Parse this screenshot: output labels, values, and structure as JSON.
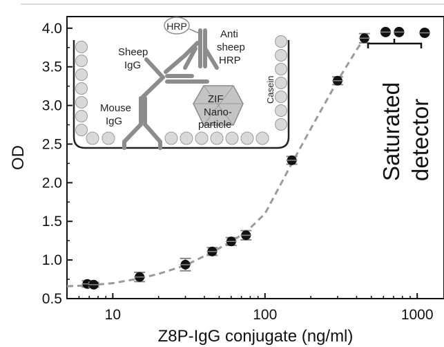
{
  "chart_data": {
    "type": "scatter",
    "title": "",
    "xlabel": "Z8P-IgG conjugate (ng/ml)",
    "ylabel": "OD",
    "x_scale": "log",
    "xlim": [
      5,
      1500
    ],
    "ylim": [
      0.5,
      4.15
    ],
    "x_ticks": [
      10,
      100,
      1000
    ],
    "x_tick_labels": [
      "10",
      "100",
      "1000"
    ],
    "y_ticks": [
      0.5,
      1.0,
      1.5,
      2.0,
      2.5,
      3.0,
      3.5,
      4.0
    ],
    "y_tick_labels": [
      "0.5",
      "1.0",
      "1.5",
      "2.0",
      "2.5",
      "3.0",
      "3.5",
      "4.0"
    ],
    "grid": false,
    "marker_color": "#111111",
    "fit_color": "#9a9a9a",
    "points": [
      {
        "x": 6.8,
        "y": 0.69,
        "err": 0.04
      },
      {
        "x": 7.5,
        "y": 0.68,
        "err": 0.03
      },
      {
        "x": 15,
        "y": 0.78,
        "err": 0.06
      },
      {
        "x": 30,
        "y": 0.94,
        "err": 0.08
      },
      {
        "x": 45,
        "y": 1.11,
        "err": 0.05
      },
      {
        "x": 60,
        "y": 1.24,
        "err": 0.05
      },
      {
        "x": 75,
        "y": 1.32,
        "err": 0.06
      },
      {
        "x": 150,
        "y": 2.29,
        "err": 0.05
      },
      {
        "x": 300,
        "y": 3.32,
        "err": 0.05
      },
      {
        "x": 450,
        "y": 3.87,
        "err": 0.06
      }
    ],
    "saturated_points": [
      {
        "x": 620,
        "y": 3.95
      },
      {
        "x": 760,
        "y": 3.95
      },
      {
        "x": 1120,
        "y": 3.94
      }
    ],
    "fit_curve": {
      "style": "dashed",
      "x": [
        5,
        6.8,
        10,
        15,
        20,
        30,
        45,
        60,
        75,
        100,
        150,
        200,
        300,
        400,
        450
      ],
      "y": [
        0.66,
        0.67,
        0.7,
        0.76,
        0.82,
        0.93,
        1.1,
        1.24,
        1.36,
        1.6,
        2.25,
        2.7,
        3.32,
        3.72,
        3.87
      ]
    },
    "annotations": {
      "saturated_label": [
        "Saturated",
        "detector"
      ]
    }
  },
  "inset": {
    "labels": {
      "hrp": "HRP",
      "anti_sheep_hrp": [
        "Anti",
        "sheep",
        "HRP"
      ],
      "sheep_igg": [
        "Sheep",
        "IgG"
      ],
      "mouse_igg": [
        "Mouse",
        "IgG"
      ],
      "zif": [
        "ZIF",
        "Nano-",
        "particle"
      ],
      "casein": "Casein"
    },
    "colors": {
      "antibody": "#8c8c8c",
      "casein_bead": "#d9d9d9",
      "nanoparticle": "#bfbfbf",
      "well": "#222222"
    }
  }
}
